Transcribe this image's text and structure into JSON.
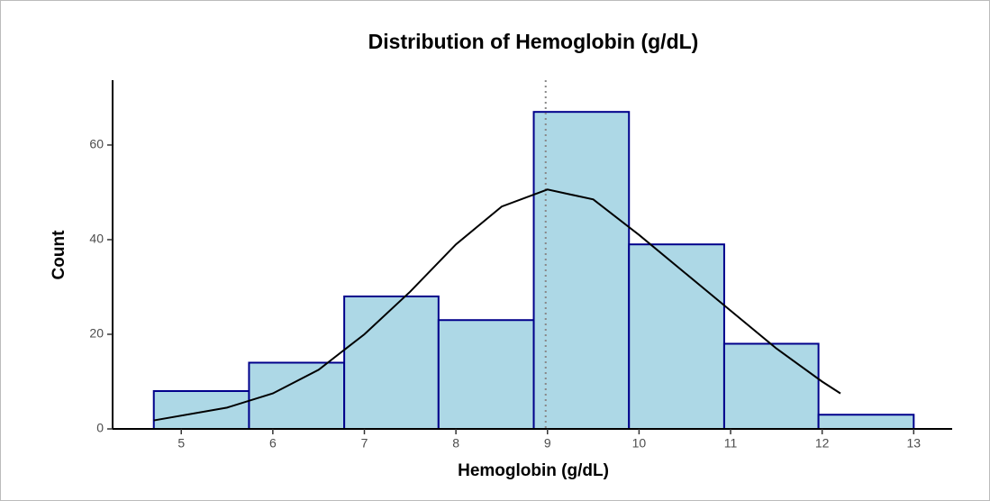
{
  "chart_data": {
    "type": "histogram",
    "title": "Distribution of Hemoglobin (g/dL)",
    "x_label": "Hemoglobin (g/dL)",
    "y_label": "Count",
    "bins": [
      4.7,
      5.74,
      6.78,
      7.81,
      8.85,
      9.89,
      10.93,
      11.96,
      13.0
    ],
    "counts": [
      8,
      14,
      28,
      23,
      67,
      39,
      18,
      3
    ],
    "fill": "#add8e6",
    "edge_color": "#00008b",
    "curve": {
      "color": "#000000",
      "x": [
        4.7,
        5.5,
        6,
        6.5,
        7,
        7.5,
        8,
        8.5,
        9,
        9.5,
        10,
        10.5,
        11,
        11.5,
        12,
        12.2
      ],
      "values": [
        1.8,
        4.5,
        7.5,
        12.5,
        20,
        29,
        39,
        47,
        50.6,
        48.5,
        41,
        33,
        25,
        17,
        10,
        7.5
      ]
    },
    "reference_line": 8.98,
    "xlim": [
      4.25,
      13.42
    ],
    "ylim": [
      0,
      73.7
    ],
    "xticks": [
      5,
      6,
      7,
      8,
      9,
      10,
      11,
      12,
      13
    ],
    "yticks": [
      0,
      20,
      40,
      60
    ]
  }
}
